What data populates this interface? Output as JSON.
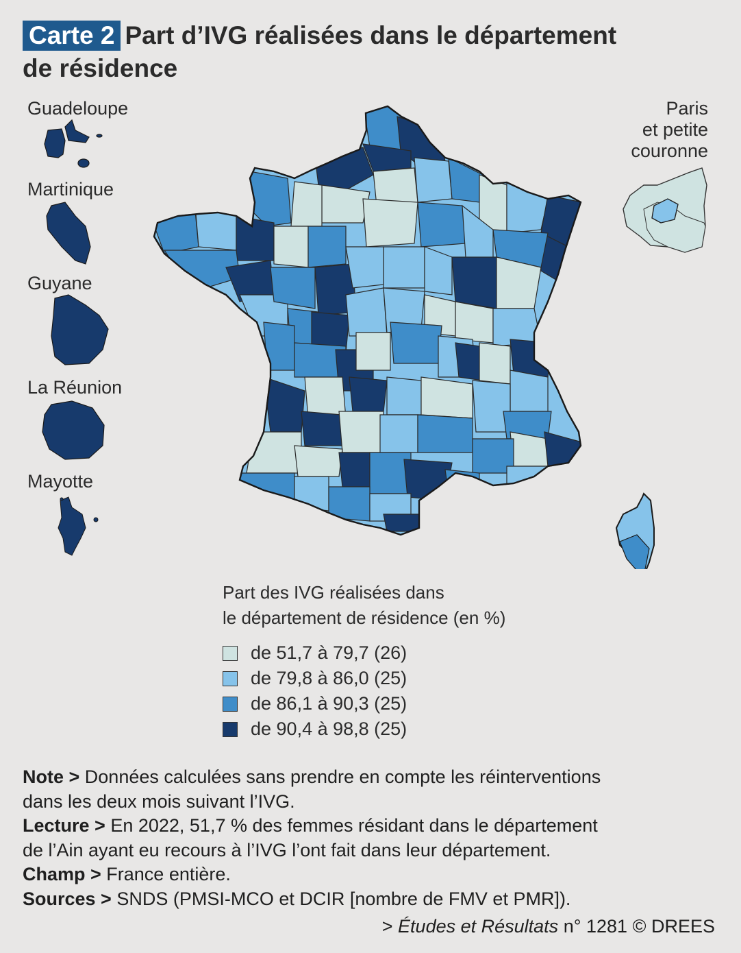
{
  "header": {
    "badge": "Carte 2",
    "title_line1": "Part d’IVG réalisées dans le département",
    "title_line2": "de résidence"
  },
  "overseas": [
    {
      "label": "Guadeloupe",
      "class_index": 3
    },
    {
      "label": "Martinique",
      "class_index": 3
    },
    {
      "label": "Guyane",
      "class_index": 3
    },
    {
      "label": "La Réunion",
      "class_index": 3
    },
    {
      "label": "Mayotte",
      "class_index": 3
    }
  ],
  "paris_inset": {
    "line1": "Paris",
    "line2": "et petite",
    "line3": "couronne"
  },
  "legend": {
    "title_line1": "Part des IVG réalisées dans",
    "title_line2": "le département de résidence (en %)",
    "classes": [
      {
        "label": "de 51,7 à 79,7 (26)",
        "color": "#cfe3e1"
      },
      {
        "label": "de 79,8 à 86,0 (25)",
        "color": "#86c3ea"
      },
      {
        "label": "de 86,1 à 90,3 (25)",
        "color": "#3f8dc9"
      },
      {
        "label": "de 90,4 à 98,8 (25)",
        "color": "#173a6c"
      }
    ]
  },
  "notes": {
    "note_label": "Note >",
    "note_text1": " Données calculées sans prendre en compte les réinterventions",
    "note_text2": "dans les deux mois suivant l’IVG.",
    "lecture_label": "Lecture >",
    "lecture_text1": " En 2022, 51,7 % des femmes résidant dans le département",
    "lecture_text2": "de l’Ain ayant eu recours à l’IVG l’ont fait dans leur département.",
    "champ_label": "Champ >",
    "champ_text": " France entière.",
    "sources_label": "Sources >",
    "sources_text": " SNDS (PMSI-MCO et DCIR [nombre de FMV et PMR])."
  },
  "source_line": {
    "prefix": "> ",
    "publication": "Études et Résultats",
    "suffix": " n° 1281 © DREES"
  }
}
